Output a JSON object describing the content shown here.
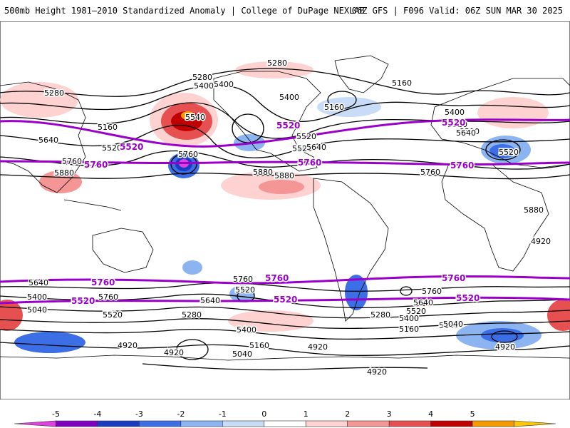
{
  "header": {
    "title": "500mb Height 1981–2010 Standardized Anomaly | College of DuPage NEXLAB",
    "run_info": "06Z GFS | F096 Valid: 06Z SUN MAR 30 2025"
  },
  "map": {
    "contour_labels": [
      "5280",
      "5280",
      "5400",
      "5540",
      "5160",
      "5640",
      "5520",
      "5760",
      "5880",
      "5520",
      "5400",
      "5160",
      "5400",
      "5160",
      "5520",
      "5520",
      "5640",
      "5760",
      "5880",
      "5280",
      "5400",
      "5520",
      "5640",
      "5520",
      "5760",
      "5880",
      "5880",
      "5640",
      "5400",
      "5760",
      "5040",
      "5520",
      "5280",
      "5640",
      "5760",
      "5520",
      "5400",
      "5040",
      "5160",
      "4920",
      "4920",
      "4920",
      "4920",
      "5040",
      "5640",
      "5520",
      "5400",
      "5160",
      "5280",
      "5760",
      "5040",
      "4920",
      "4920",
      "5040"
    ],
    "highlight_labels": [
      "5520",
      "5760",
      "5520",
      "5760",
      "5520",
      "5760",
      "5760",
      "5520",
      "5760",
      "5520",
      "5760",
      "5520"
    ],
    "colors": {
      "contour": "#000000",
      "highlight_contour": "#9b00c8",
      "coast": "#000000"
    }
  },
  "colorbar": {
    "ticks": [
      "-5",
      "-4",
      "-3",
      "-2",
      "-1",
      "0",
      "1",
      "2",
      "3",
      "4",
      "5"
    ],
    "colors": [
      "#e040e0",
      "#8000c0",
      "#1a3cc0",
      "#3c6ee6",
      "#8cb4f0",
      "#c8dcf8",
      "#ffffff",
      "#ffd2d2",
      "#f59696",
      "#e65050",
      "#c00000",
      "#f59b00",
      "#ffc800"
    ]
  }
}
